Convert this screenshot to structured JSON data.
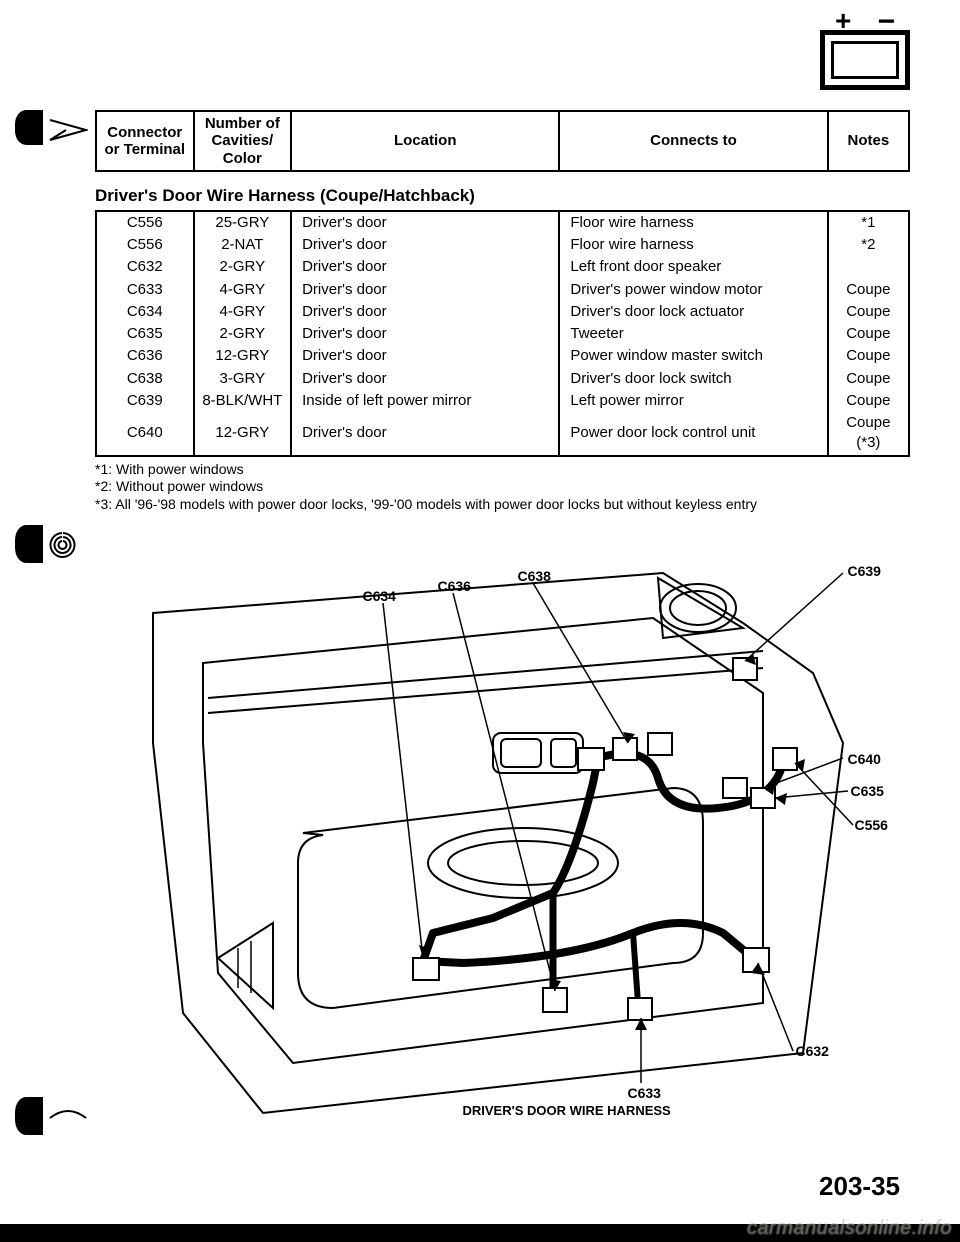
{
  "header": {
    "col1": "Connector or Terminal",
    "col2": "Number of Cavities/ Color",
    "col3": "Location",
    "col4": "Connects to",
    "col5": "Notes"
  },
  "section_title": "Driver's Door Wire Harness (Coupe/Hatchback)",
  "rows": [
    {
      "c": "C556",
      "cav": "25-GRY",
      "loc": "Driver's door",
      "conn": "Floor wire harness",
      "note": "*1"
    },
    {
      "c": "C556",
      "cav": "2-NAT",
      "loc": "Driver's door",
      "conn": "Floor wire harness",
      "note": "*2"
    },
    {
      "c": "C632",
      "cav": "2-GRY",
      "loc": "Driver's door",
      "conn": "Left front door speaker",
      "note": ""
    },
    {
      "c": "C633",
      "cav": "4-GRY",
      "loc": "Driver's door",
      "conn": "Driver's power window motor",
      "note": "Coupe"
    },
    {
      "c": "C634",
      "cav": "4-GRY",
      "loc": "Driver's door",
      "conn": "Driver's door lock actuator",
      "note": "Coupe"
    },
    {
      "c": "C635",
      "cav": "2-GRY",
      "loc": "Driver's door",
      "conn": "Tweeter",
      "note": "Coupe"
    },
    {
      "c": "C636",
      "cav": "12-GRY",
      "loc": "Driver's door",
      "conn": "Power window master switch",
      "note": "Coupe"
    },
    {
      "c": "C638",
      "cav": "3-GRY",
      "loc": "Driver's door",
      "conn": "Driver's door lock switch",
      "note": "Coupe"
    },
    {
      "c": "C639",
      "cav": "8-BLK/WHT",
      "loc": "Inside of left power mirror",
      "conn": "Left power mirror",
      "note": "Coupe"
    },
    {
      "c": "C640",
      "cav": "12-GRY",
      "loc": "Driver's door",
      "conn": "Power door lock control unit",
      "note": "Coupe (*3)"
    }
  ],
  "footnotes": [
    "*1: With power windows",
    "*2: Without power windows",
    "*3: All '96-'98 models with power door locks, '99-'00 models with power door locks but without keyless entry"
  ],
  "callouts": {
    "c634": "C634",
    "c636": "C636",
    "c638": "C638",
    "c639": "C639",
    "c640": "C640",
    "c635": "C635",
    "c556": "C556",
    "c632": "C632",
    "c633": "C633"
  },
  "diagram_caption": "DRIVER'S DOOR WIRE HARNESS",
  "page_number": "203-35",
  "watermark": "carmanualsonline.info"
}
